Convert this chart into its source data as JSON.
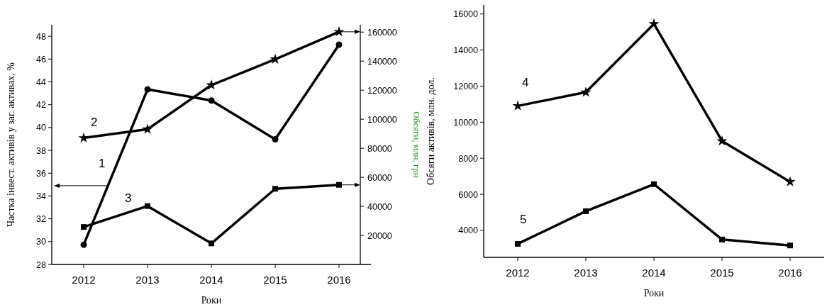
{
  "chart_data": [
    {
      "type": "line",
      "categories": [
        "2012",
        "2013",
        "2014",
        "2015",
        "2016"
      ],
      "xlabel": "Роки",
      "ylabel": "Частка інвест. активів у заг. активах, %",
      "y2label": "Обсяги, млн. грн",
      "ylim": [
        28,
        49
      ],
      "yticks": [
        28,
        30,
        32,
        34,
        36,
        38,
        40,
        42,
        44,
        46,
        48
      ],
      "y2lim": [
        0,
        165000
      ],
      "y2ticks": [
        20000,
        40000,
        60000,
        80000,
        100000,
        120000,
        140000,
        160000
      ],
      "grid": false,
      "line_style": "solid",
      "series": [
        {
          "name": "1",
          "color": "#000000",
          "marker": "circle",
          "values": [
            29.73,
            43.34,
            42.37,
            38.96,
            47.26
          ]
        },
        {
          "name": "2",
          "color": "#000000",
          "marker": "star",
          "axis": "y2",
          "values": [
            87100,
            93100,
            123500,
            141300,
            160200
          ]
        },
        {
          "name": "3",
          "color": "#000000",
          "marker": "square",
          "axis": "y2",
          "values": [
            25800,
            40200,
            14500,
            52100,
            54800
          ]
        }
      ]
    },
    {
      "type": "line",
      "categories": [
        "2012",
        "2013",
        "2014",
        "2015",
        "2016"
      ],
      "xlabel": "Роки",
      "ylabel": "Обсяги активів, млн. дол.",
      "ylim": [
        2500,
        16500
      ],
      "yticks": [
        4000,
        6000,
        8000,
        10000,
        12000,
        14000,
        16000
      ],
      "grid": false,
      "line_style": "solid",
      "series": [
        {
          "name": "4",
          "color": "#000000",
          "marker": "star",
          "values": [
            10900,
            11660,
            15450,
            8950,
            6690
          ]
        },
        {
          "name": "5",
          "color": "#000000",
          "marker": "square",
          "values": [
            3250,
            5060,
            6560,
            3490,
            3160
          ]
        }
      ]
    }
  ]
}
